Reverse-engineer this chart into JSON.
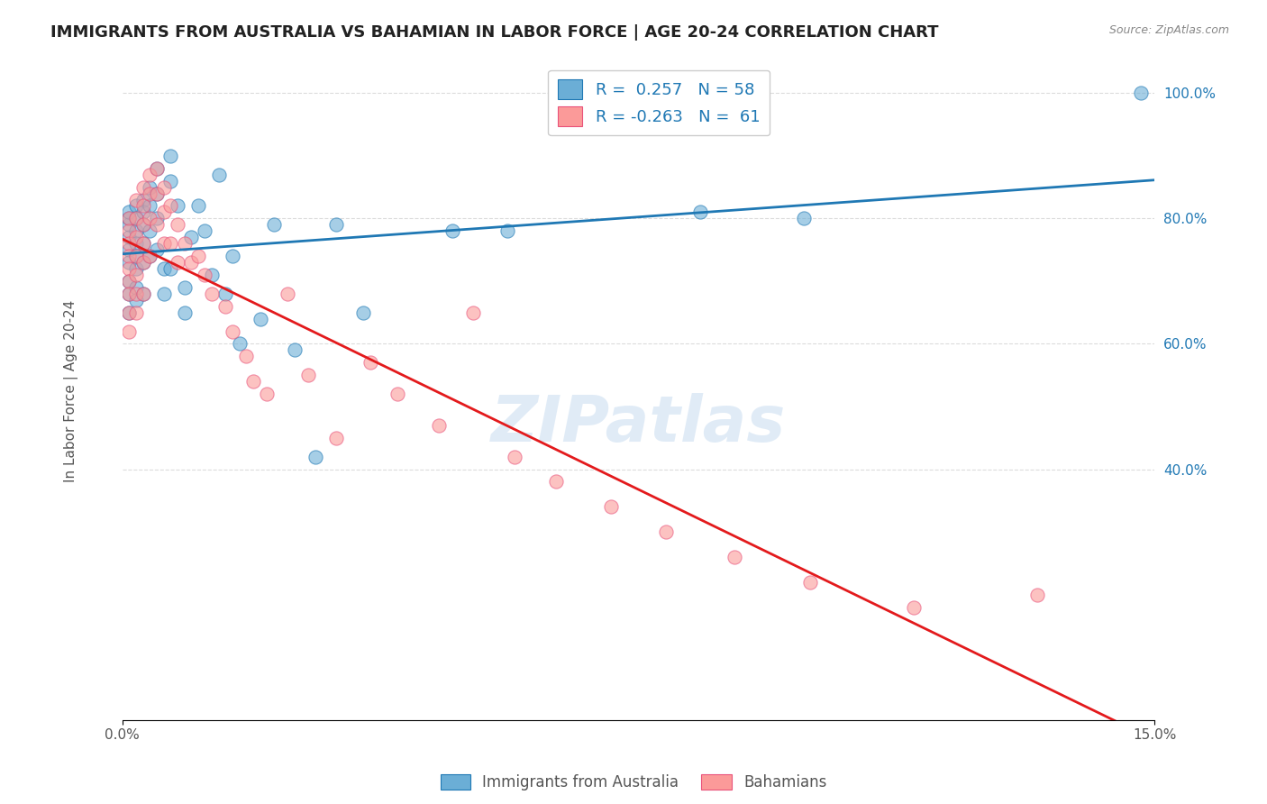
{
  "title": "IMMIGRANTS FROM AUSTRALIA VS BAHAMIAN IN LABOR FORCE | AGE 20-24 CORRELATION CHART",
  "source": "Source: ZipAtlas.com",
  "xlabel_ticks": [
    0.0,
    0.03,
    0.06,
    0.09,
    0.12,
    0.15
  ],
  "xlabel_tick_labels": [
    "0.0%",
    "",
    "",
    "",
    "",
    "15.0%"
  ],
  "ylabel_ticks": [
    0.0,
    0.2,
    0.4,
    0.6,
    0.8,
    1.0
  ],
  "ylabel_tick_labels": [
    "",
    "",
    "40.0%",
    "60.0%",
    "80.0%",
    "100.0%"
  ],
  "ylabel_label": "In Labor Force | Age 20-24",
  "legend_r_blue": "R =  0.257",
  "legend_n_blue": "N = 58",
  "legend_r_pink": "R = -0.263",
  "legend_n_pink": "N =  61",
  "legend_label_blue": "Immigrants from Australia",
  "legend_label_pink": "Bahamians",
  "blue_color": "#6baed6",
  "pink_color": "#fb9a99",
  "trendline_blue": "#1f78b4",
  "trendline_pink": "#e31a1c",
  "watermark": "ZIPatlas",
  "blue_points_x": [
    0.001,
    0.001,
    0.001,
    0.001,
    0.001,
    0.001,
    0.001,
    0.001,
    0.001,
    0.002,
    0.002,
    0.002,
    0.002,
    0.002,
    0.002,
    0.002,
    0.002,
    0.003,
    0.003,
    0.003,
    0.003,
    0.003,
    0.003,
    0.004,
    0.004,
    0.004,
    0.004,
    0.005,
    0.005,
    0.005,
    0.005,
    0.006,
    0.006,
    0.007,
    0.007,
    0.007,
    0.008,
    0.009,
    0.009,
    0.01,
    0.011,
    0.012,
    0.013,
    0.014,
    0.015,
    0.016,
    0.017,
    0.02,
    0.022,
    0.025,
    0.028,
    0.031,
    0.035,
    0.048,
    0.056,
    0.084,
    0.099,
    0.148
  ],
  "blue_points_y": [
    0.77,
    0.79,
    0.8,
    0.81,
    0.75,
    0.73,
    0.7,
    0.68,
    0.65,
    0.82,
    0.8,
    0.78,
    0.76,
    0.74,
    0.72,
    0.69,
    0.67,
    0.83,
    0.81,
    0.79,
    0.76,
    0.73,
    0.68,
    0.85,
    0.82,
    0.78,
    0.74,
    0.88,
    0.84,
    0.8,
    0.75,
    0.72,
    0.68,
    0.9,
    0.86,
    0.72,
    0.82,
    0.69,
    0.65,
    0.77,
    0.82,
    0.78,
    0.71,
    0.87,
    0.68,
    0.74,
    0.6,
    0.64,
    0.79,
    0.59,
    0.42,
    0.79,
    0.65,
    0.78,
    0.78,
    0.81,
    0.8,
    1.0
  ],
  "pink_points_x": [
    0.001,
    0.001,
    0.001,
    0.001,
    0.001,
    0.001,
    0.001,
    0.001,
    0.001,
    0.002,
    0.002,
    0.002,
    0.002,
    0.002,
    0.002,
    0.002,
    0.003,
    0.003,
    0.003,
    0.003,
    0.003,
    0.003,
    0.004,
    0.004,
    0.004,
    0.004,
    0.005,
    0.005,
    0.005,
    0.006,
    0.006,
    0.006,
    0.007,
    0.007,
    0.008,
    0.008,
    0.009,
    0.01,
    0.011,
    0.012,
    0.013,
    0.015,
    0.016,
    0.018,
    0.019,
    0.021,
    0.024,
    0.027,
    0.031,
    0.036,
    0.04,
    0.046,
    0.051,
    0.057,
    0.063,
    0.071,
    0.079,
    0.089,
    0.1,
    0.115,
    0.133
  ],
  "pink_points_y": [
    0.8,
    0.78,
    0.76,
    0.74,
    0.72,
    0.7,
    0.68,
    0.65,
    0.62,
    0.83,
    0.8,
    0.77,
    0.74,
    0.71,
    0.68,
    0.65,
    0.85,
    0.82,
    0.79,
    0.76,
    0.73,
    0.68,
    0.87,
    0.84,
    0.8,
    0.74,
    0.88,
    0.84,
    0.79,
    0.85,
    0.81,
    0.76,
    0.82,
    0.76,
    0.79,
    0.73,
    0.76,
    0.73,
    0.74,
    0.71,
    0.68,
    0.66,
    0.62,
    0.58,
    0.54,
    0.52,
    0.68,
    0.55,
    0.45,
    0.57,
    0.52,
    0.47,
    0.65,
    0.42,
    0.38,
    0.34,
    0.3,
    0.26,
    0.22,
    0.18,
    0.2
  ]
}
